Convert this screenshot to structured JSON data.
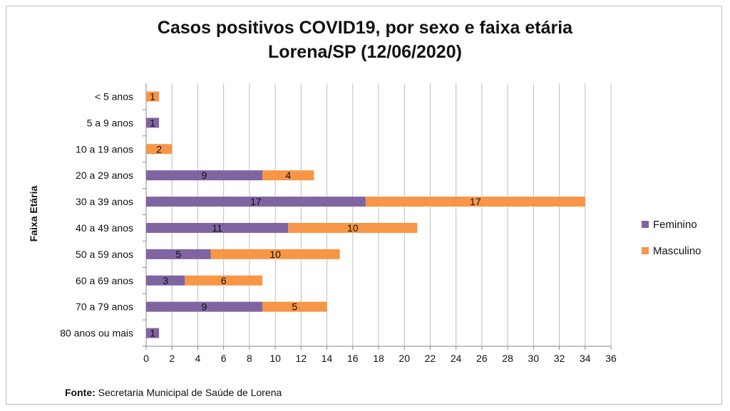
{
  "chart_data": {
    "type": "bar",
    "orientation": "horizontal",
    "stacked": true,
    "title": "Casos positivos COVID19, por sexo e faixa etária",
    "subtitle": "Lorena/SP (12/06/2020)",
    "ylabel": "Faixa Etária",
    "xlabel": "",
    "xlim": [
      0,
      36
    ],
    "xticks": [
      0,
      2,
      4,
      6,
      8,
      10,
      12,
      14,
      16,
      18,
      20,
      22,
      24,
      26,
      28,
      30,
      32,
      34,
      36
    ],
    "grid": true,
    "legend_position": "right",
    "categories": [
      "< 5 anos",
      "5 a 9 anos",
      "10 a 19 anos",
      "20 a 29 anos",
      "30 a 39 anos",
      "40 a 49 anos",
      "50 a 59 anos",
      "60 a 69 anos",
      "70 a 79 anos",
      "80 anos ou mais"
    ],
    "series": [
      {
        "name": "Feminino",
        "color": "#8064a2",
        "values": [
          0,
          1,
          0,
          9,
          17,
          11,
          5,
          3,
          9,
          1
        ]
      },
      {
        "name": "Masculino",
        "color": "#f79646",
        "values": [
          1,
          0,
          2,
          4,
          17,
          10,
          10,
          6,
          5,
          0
        ]
      }
    ]
  },
  "source": {
    "label": "Fonte:",
    "text": " Secretaria Municipal de Saúde de Lorena"
  }
}
